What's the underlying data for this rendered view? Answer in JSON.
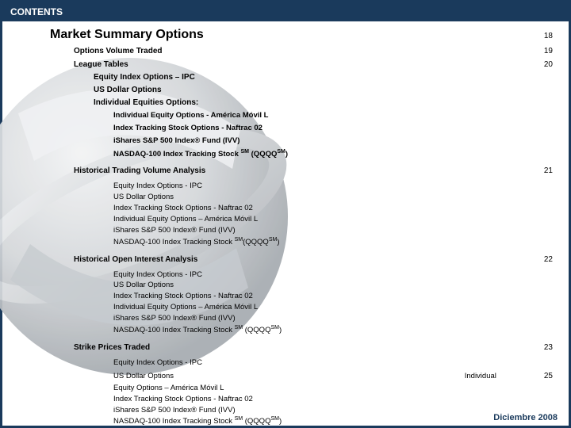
{
  "header": {
    "label": "CONTENTS"
  },
  "title": {
    "text": "Market Summary Options",
    "page": "18"
  },
  "rows": [
    {
      "cls": "lvl1",
      "text": "Options Volume Traded",
      "page": "19"
    },
    {
      "cls": "lvl1",
      "text": "League Tables",
      "page": "20"
    },
    {
      "cls": "lvl2",
      "text": "Equity Index Options – IPC"
    },
    {
      "cls": "lvl2",
      "text": "US Dollar Options"
    },
    {
      "cls": "lvl2",
      "text": "Individual Equities Options:"
    },
    {
      "cls": "lvl3",
      "text": "Individual Equity Options - América Móvil L"
    },
    {
      "cls": "lvl3",
      "text": "Index Tracking Stock Options - Naftrac 02"
    },
    {
      "cls": "lvl3",
      "text": "iShares S&P 500 Index® Fund (IVV)"
    },
    {
      "cls": "lvl3",
      "text": "NASDAQ-100 Index Tracking Stock ",
      "sup": "SM",
      "tail": " (QQQQ",
      "sup2": "SM",
      "tail2": ")"
    },
    {
      "cls": "lvl1",
      "text": "Historical Trading Volume Analysis",
      "page": "21",
      "pad": "10"
    },
    {
      "cls": "lvl3b",
      "text": "Equity Index Options - IPC",
      "pad": "8"
    },
    {
      "cls": "lvl3b",
      "text": "US Dollar Options"
    },
    {
      "cls": "lvl3b",
      "text": "Index Tracking Stock Options - Naftrac 02"
    },
    {
      "cls": "lvl3b",
      "text": "Individual Equity Options – América Móvil L"
    },
    {
      "cls": "lvl3b",
      "text": "iShares S&P 500 Index® Fund (IVV)"
    },
    {
      "cls": "lvl3b",
      "text": "NASDAQ-100 Index Tracking Stock ",
      "sup": "SM",
      "tail": "(QQQQ",
      "sup2": "SM",
      "tail2": ")"
    },
    {
      "cls": "lvl1",
      "text": "Historical Open Interest Analysis",
      "page": "22",
      "pad": "10"
    },
    {
      "cls": "lvl3b",
      "text": "Equity Index Options - IPC",
      "pad": "8"
    },
    {
      "cls": "lvl3b",
      "text": "US Dollar Options"
    },
    {
      "cls": "lvl3b",
      "text": "Index Tracking Stock Options - Naftrac 02"
    },
    {
      "cls": "lvl3b",
      "text": "Individual Equity Options – América Móvil L"
    },
    {
      "cls": "lvl3b",
      "text": "iShares S&P 500 Index® Fund (IVV)"
    },
    {
      "cls": "lvl3b",
      "text": "NASDAQ-100 Index Tracking Stock ",
      "sup": "SM",
      "tail": " (QQQQ",
      "sup2": "SM",
      "tail2": ")"
    },
    {
      "cls": "lvl1",
      "text": "Strike Prices Traded",
      "page": "23",
      "pad": "10"
    },
    {
      "cls": "lvl3b",
      "text": "Equity Index Options - IPC",
      "pad": "8"
    },
    {
      "cls": "lvl3b",
      "text": "US Dollar Options",
      "right": "Individual",
      "rightpage": "25"
    },
    {
      "cls": "lvl3b",
      "text": "Equity Options – América Móvil L"
    },
    {
      "cls": "lvl3b",
      "text": "Index Tracking Stock Options - Naftrac 02"
    },
    {
      "cls": "lvl3b",
      "text": "iShares S&P 500 Index® Fund (IVV)"
    },
    {
      "cls": "lvl3b",
      "text": "NASDAQ-100 Index Tracking Stock ",
      "sup": "SM",
      "tail": " (QQQQ",
      "sup2": "SM",
      "tail2": ")"
    }
  ],
  "footer": {
    "text": "Diciembre 2008"
  },
  "graphic": {
    "bg": "#ffffff",
    "sphere_light": "#e6e8ea",
    "sphere_mid": "#c8ccd0",
    "sphere_dark": "#9aa0a6",
    "ring": "#b8bcc0"
  }
}
